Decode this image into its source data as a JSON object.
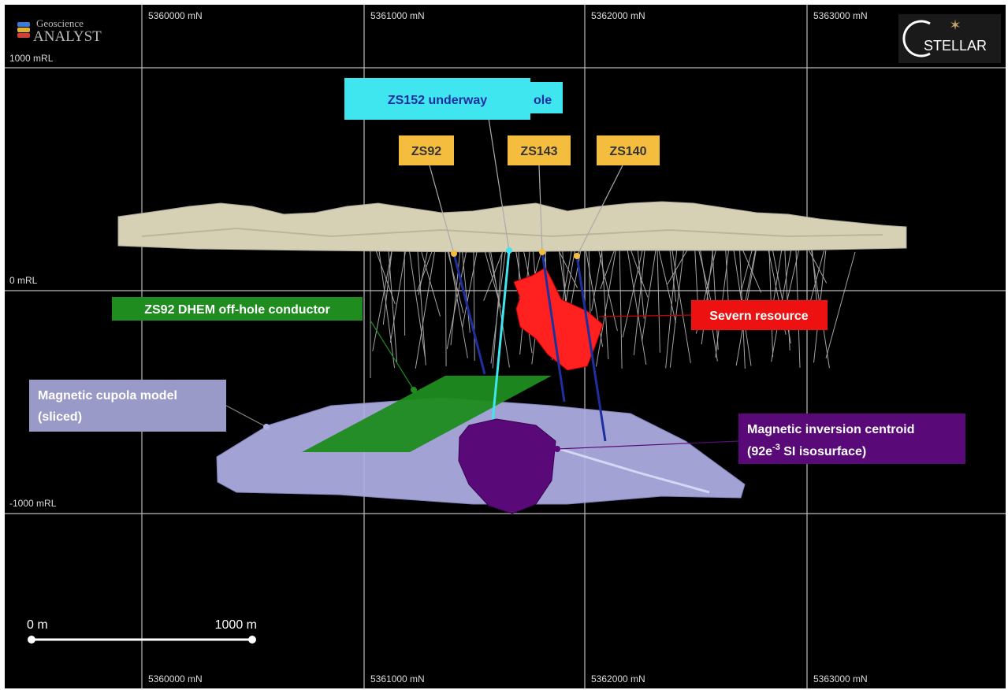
{
  "logos": {
    "left_top": "Geoscience",
    "left_bottom": "ANALYST",
    "right": "STELLAR"
  },
  "grid": {
    "top_labels": [
      "5360000 mN",
      "5361000 mN",
      "5362000 mN",
      "5363000 mN"
    ],
    "bottom_labels": [
      "5360000 mN",
      "5361000 mN",
      "5362000 mN",
      "5363000 mN"
    ],
    "left_labels": [
      "1000 mRL",
      "0 mRL",
      "-1000 mRL"
    ]
  },
  "callouts": {
    "hidden": "ole",
    "zs152": "ZS152 underway",
    "zs92": "ZS92",
    "zs143": "ZS143",
    "zs140": "ZS140",
    "conductor": "ZS92 DHEM off-hole conductor",
    "severn": "Severn resource",
    "cupola": [
      "Magnetic cupola model",
      "(sliced)"
    ],
    "centroid": {
      "line1": "Magnetic inversion centroid",
      "line2_a": "(92e",
      "line2_sup": "-3",
      "line2_b": " SI isosurface)"
    }
  },
  "scale_bar": {
    "start": "0 m",
    "end": "1000 m"
  }
}
